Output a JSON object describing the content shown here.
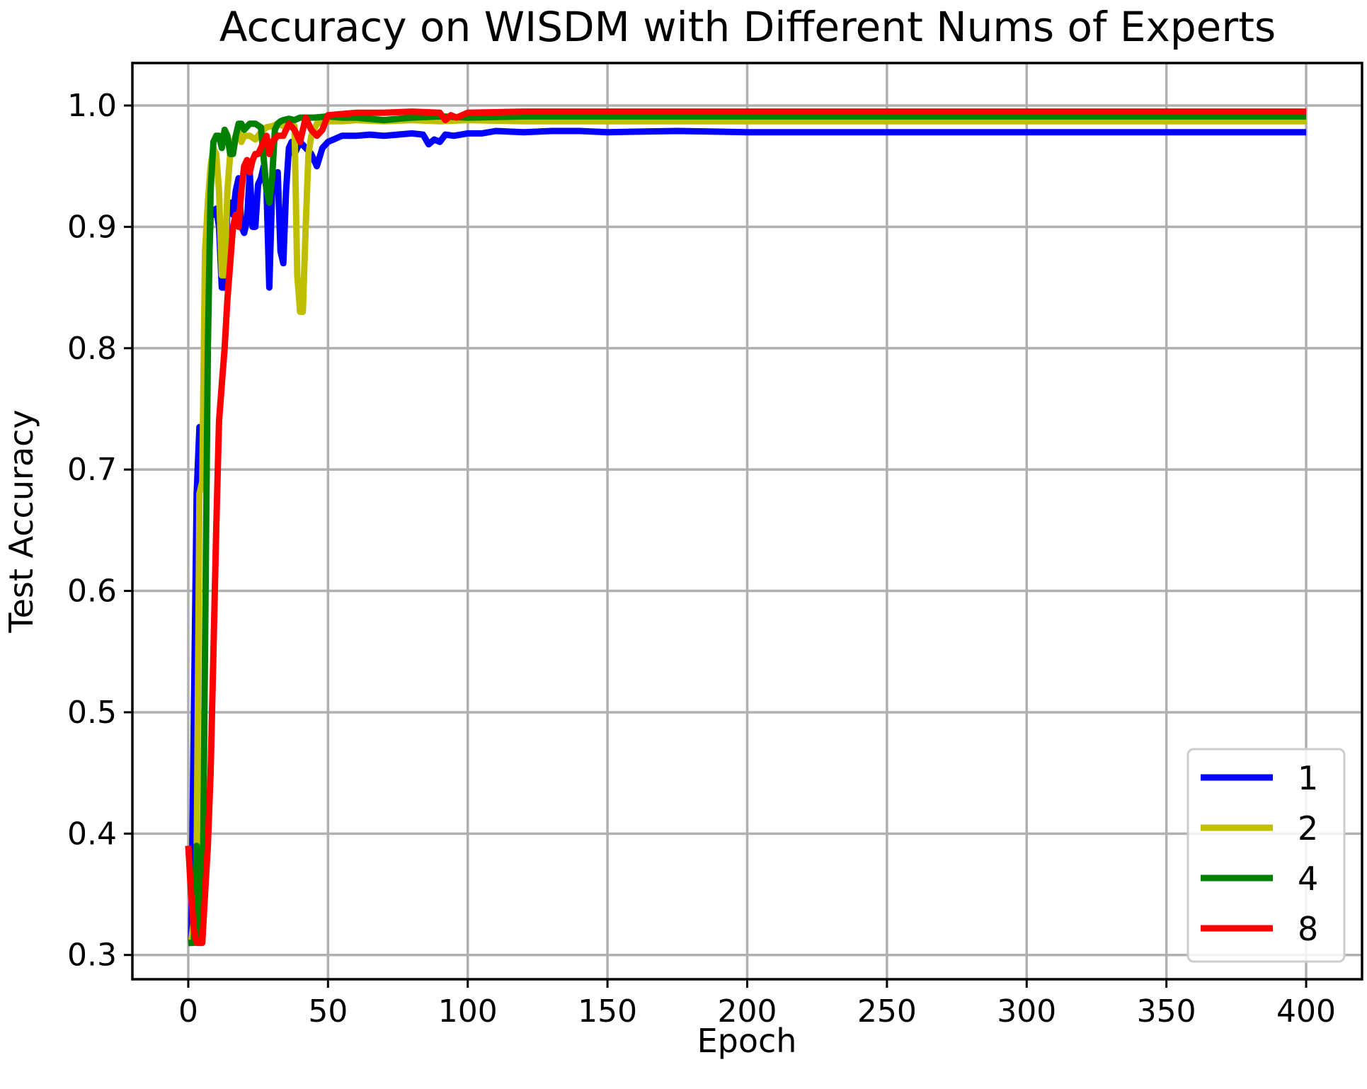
{
  "chart_data": {
    "type": "line",
    "title": "Accuracy on WISDM with Different Nums of Experts",
    "xlabel": "Epoch",
    "ylabel": "Test Accuracy",
    "xlim": [
      -20,
      420
    ],
    "ylim": [
      0.28,
      1.035
    ],
    "xticks": [
      0,
      50,
      100,
      150,
      200,
      250,
      300,
      350,
      400
    ],
    "yticks": [
      0.3,
      0.4,
      0.5,
      0.6,
      0.7,
      0.8,
      0.9,
      1.0
    ],
    "ytick_labels": [
      "0.3",
      "0.4",
      "0.5",
      "0.6",
      "0.7",
      "0.8",
      "0.9",
      "1.0"
    ],
    "grid": true,
    "legend_position": "lower-right",
    "series": [
      {
        "name": "1",
        "color": "#0000ff",
        "x": [
          0,
          1,
          2,
          3,
          4,
          5,
          6,
          7,
          8,
          9,
          10,
          11,
          12,
          13,
          14,
          15,
          16,
          17,
          18,
          19,
          20,
          21,
          22,
          23,
          24,
          25,
          26,
          27,
          28,
          29,
          30,
          31,
          32,
          33,
          34,
          35,
          36,
          37,
          38,
          39,
          40,
          42,
          44,
          46,
          48,
          50,
          55,
          60,
          65,
          70,
          75,
          80,
          84,
          86,
          88,
          90,
          92,
          95,
          100,
          105,
          110,
          120,
          130,
          140,
          150,
          175,
          200,
          250,
          300,
          350,
          400
        ],
        "values": [
          0.31,
          0.31,
          0.5,
          0.68,
          0.735,
          0.69,
          0.83,
          0.84,
          0.91,
          0.91,
          0.915,
          0.9,
          0.85,
          0.85,
          0.915,
          0.92,
          0.91,
          0.93,
          0.94,
          0.9,
          0.895,
          0.905,
          0.945,
          0.9,
          0.9,
          0.935,
          0.94,
          0.95,
          0.93,
          0.85,
          0.93,
          0.935,
          0.945,
          0.88,
          0.87,
          0.93,
          0.965,
          0.97,
          0.96,
          0.965,
          0.97,
          0.965,
          0.96,
          0.95,
          0.965,
          0.97,
          0.975,
          0.975,
          0.976,
          0.975,
          0.976,
          0.977,
          0.976,
          0.968,
          0.972,
          0.97,
          0.976,
          0.975,
          0.977,
          0.977,
          0.979,
          0.978,
          0.979,
          0.979,
          0.978,
          0.979,
          0.978,
          0.978,
          0.978,
          0.978,
          0.978
        ]
      },
      {
        "name": "2",
        "color": "#bfbf00",
        "x": [
          0,
          1,
          2,
          3,
          4,
          5,
          6,
          7,
          8,
          9,
          10,
          11,
          12,
          13,
          14,
          15,
          16,
          17,
          18,
          19,
          20,
          22,
          24,
          26,
          28,
          30,
          32,
          34,
          36,
          38,
          39,
          40,
          41,
          42,
          43,
          44,
          46,
          48,
          50,
          55,
          60,
          70,
          80,
          90,
          100,
          120,
          150,
          200,
          250,
          300,
          350,
          400
        ],
        "values": [
          0.31,
          0.31,
          0.33,
          0.38,
          0.68,
          0.69,
          0.88,
          0.92,
          0.95,
          0.965,
          0.96,
          0.93,
          0.86,
          0.86,
          0.93,
          0.96,
          0.97,
          0.975,
          0.978,
          0.97,
          0.975,
          0.975,
          0.972,
          0.978,
          0.982,
          0.983,
          0.985,
          0.983,
          0.985,
          0.983,
          0.86,
          0.83,
          0.83,
          0.9,
          0.96,
          0.975,
          0.985,
          0.986,
          0.987,
          0.987,
          0.988,
          0.987,
          0.988,
          0.987,
          0.988,
          0.987,
          0.987,
          0.987,
          0.987,
          0.987,
          0.987,
          0.987
        ]
      },
      {
        "name": "4",
        "color": "#008000",
        "x": [
          0,
          1,
          2,
          3,
          4,
          5,
          6,
          7,
          8,
          9,
          10,
          11,
          12,
          13,
          14,
          15,
          16,
          17,
          18,
          19,
          20,
          22,
          24,
          26,
          28,
          29,
          30,
          31,
          32,
          33,
          34,
          36,
          38,
          40,
          42,
          45,
          50,
          55,
          60,
          70,
          75,
          80,
          90,
          100,
          120,
          150,
          200,
          250,
          300,
          350,
          400
        ],
        "values": [
          0.31,
          0.31,
          0.31,
          0.39,
          0.31,
          0.31,
          0.55,
          0.8,
          0.93,
          0.97,
          0.975,
          0.975,
          0.965,
          0.98,
          0.975,
          0.96,
          0.96,
          0.975,
          0.985,
          0.985,
          0.98,
          0.985,
          0.985,
          0.982,
          0.93,
          0.92,
          0.94,
          0.98,
          0.985,
          0.987,
          0.988,
          0.989,
          0.988,
          0.99,
          0.99,
          0.99,
          0.991,
          0.99,
          0.99,
          0.988,
          0.989,
          0.99,
          0.991,
          0.99,
          0.991,
          0.991,
          0.991,
          0.991,
          0.991,
          0.991,
          0.991
        ]
      },
      {
        "name": "8",
        "color": "#ff0000",
        "x": [
          0,
          1,
          2,
          3,
          4,
          5,
          6,
          7,
          8,
          9,
          10,
          11,
          12,
          13,
          14,
          15,
          16,
          17,
          18,
          19,
          20,
          21,
          22,
          23,
          24,
          25,
          26,
          27,
          28,
          29,
          30,
          32,
          34,
          36,
          38,
          40,
          42,
          44,
          46,
          48,
          50,
          55,
          60,
          70,
          80,
          90,
          92,
          94,
          96,
          100,
          120,
          150,
          200,
          250,
          300,
          350,
          400
        ],
        "values": [
          0.39,
          0.35,
          0.32,
          0.31,
          0.31,
          0.31,
          0.35,
          0.39,
          0.45,
          0.55,
          0.65,
          0.74,
          0.77,
          0.8,
          0.84,
          0.87,
          0.9,
          0.91,
          0.9,
          0.93,
          0.95,
          0.955,
          0.945,
          0.955,
          0.96,
          0.96,
          0.965,
          0.97,
          0.975,
          0.96,
          0.97,
          0.975,
          0.975,
          0.985,
          0.98,
          0.97,
          0.99,
          0.98,
          0.975,
          0.98,
          0.992,
          0.993,
          0.994,
          0.994,
          0.995,
          0.994,
          0.988,
          0.992,
          0.99,
          0.994,
          0.995,
          0.995,
          0.995,
          0.995,
          0.995,
          0.995,
          0.995
        ]
      }
    ]
  }
}
